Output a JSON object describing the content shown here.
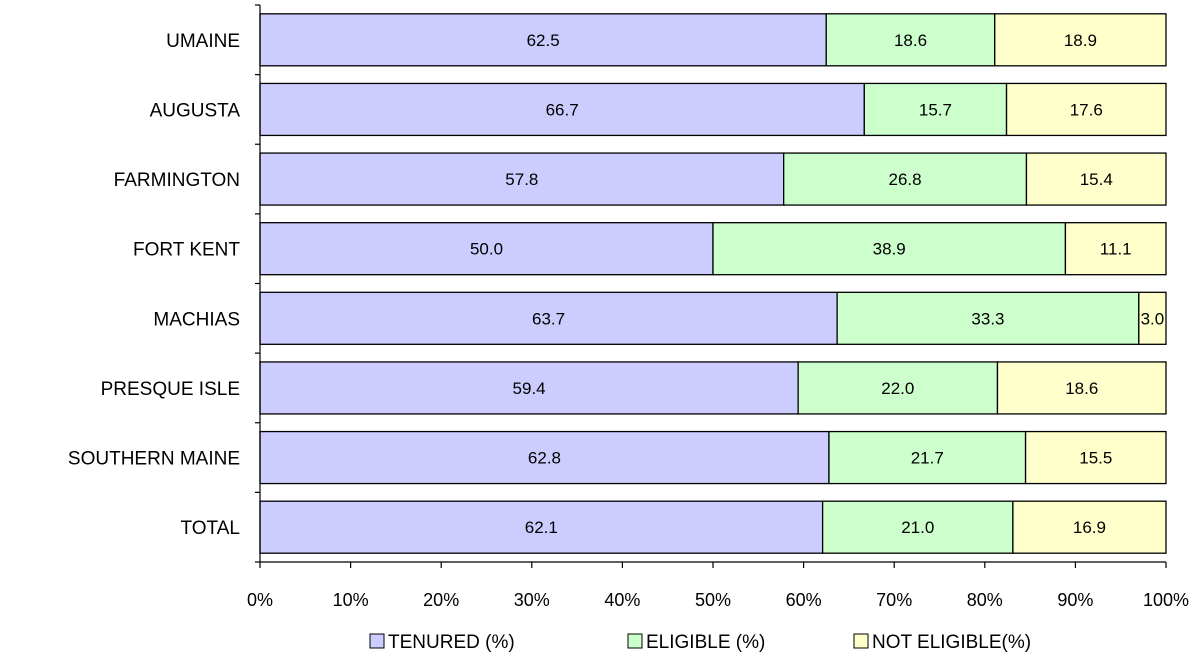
{
  "chart_data": {
    "type": "bar",
    "orientation": "horizontal",
    "stacked": "percent",
    "categories": [
      "UMAINE",
      "AUGUSTA",
      "FARMINGTON",
      "FORT KENT",
      "MACHIAS",
      "PRESQUE ISLE",
      "SOUTHERN MAINE",
      "TOTAL"
    ],
    "series": [
      {
        "name": "TENURED (%)",
        "color": "#ccccff",
        "values": [
          62.5,
          66.7,
          57.8,
          50.0,
          63.7,
          59.4,
          62.8,
          62.1
        ],
        "labels": [
          "62.5",
          "66.7",
          "57.8",
          "50.0",
          "63.7",
          "59.4",
          "62.8",
          "62.1"
        ]
      },
      {
        "name": "ELIGIBLE (%)",
        "color": "#ccffcc",
        "values": [
          18.6,
          15.7,
          26.8,
          38.9,
          33.3,
          22.0,
          21.7,
          21.0
        ],
        "labels": [
          "18.6",
          "15.7",
          "26.8",
          "38.9",
          "33.3",
          "22.0",
          "21.7",
          "21.0"
        ]
      },
      {
        "name": "NOT ELIGIBLE(%)",
        "color": "#ffffcc",
        "values": [
          18.9,
          17.6,
          15.4,
          11.1,
          3.0,
          18.6,
          15.5,
          16.9
        ],
        "labels": [
          "18.9",
          "17.6",
          "15.4",
          "11.1",
          "3.0",
          "18.6",
          "15.5",
          "16.9"
        ]
      }
    ],
    "xlim": [
      0,
      100
    ],
    "xticks": [
      "0%",
      "10%",
      "20%",
      "30%",
      "40%",
      "50%",
      "60%",
      "70%",
      "80%",
      "90%",
      "100%"
    ],
    "title": "",
    "xlabel": "",
    "ylabel": "",
    "grid": false,
    "legend": "bottom"
  }
}
